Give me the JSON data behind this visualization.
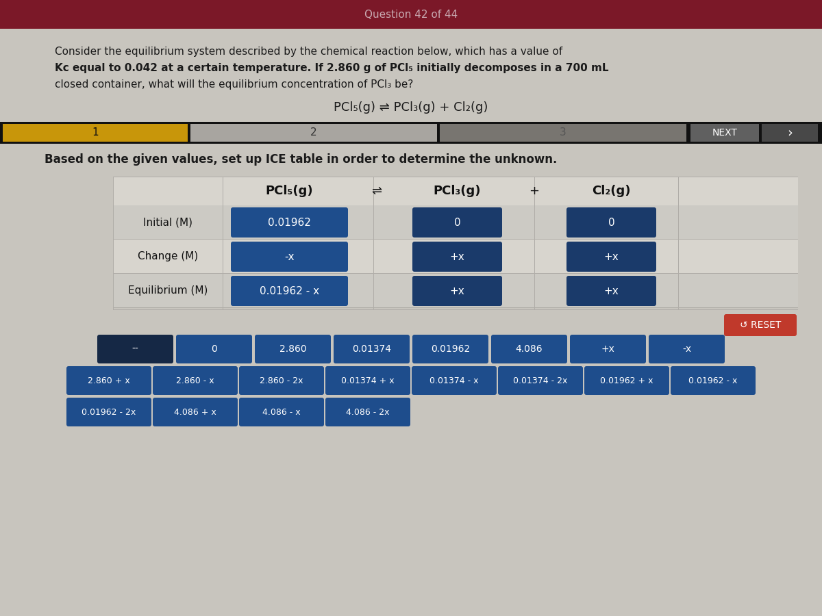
{
  "header_text": "Question 42 of 44",
  "header_bg": "#7B1828",
  "header_text_color": "#C8A8B0",
  "main_bg": "#C8C5BE",
  "question_line1": "Consider the equilibrium system described by the chemical reaction below, which has a value of",
  "question_line2_normal": "Kc equal to 0.042 at a certain temperature. If 2.860 g of PCl",
  "question_line2_bold": "5",
  "question_line2_end": " initially decomposes in a 700 mL",
  "question_line3": "closed container, what will the equilibrium concentration of PCl",
  "equation": "PCl₅(g) ⇌ PCl₃(g) + Cl₂(g)",
  "nav_bg": "#111111",
  "nav_step1_color": "#C8960A",
  "nav_step2_color": "#A8A5A0",
  "nav_step3_color": "#787570",
  "instruction": "Based on the given values, set up ICE table in order to determine the unknown.",
  "table_header_col1": "PCl₅(g)",
  "table_header_eq": "⇌",
  "table_header_col2": "PCl₃(g)",
  "table_header_plus": "+",
  "table_header_col3": "Cl₂(g)",
  "row_labels": [
    "Initial (M)",
    "Change (M)",
    "Equilibrium (M)"
  ],
  "cell_blue": "#1E4D8C",
  "cell_dark_blue": "#1A3A6A",
  "table_bg_light": "#CCCAC4",
  "table_bg_lighter": "#D8D5CE",
  "table_border": "#B0ADA8",
  "reset_btn_color": "#C0392B",
  "reset_text": "↺ RESET",
  "button_row1": [
    "--",
    "0",
    "2.860",
    "0.01374",
    "0.01962",
    "4.086",
    "+x",
    "-x"
  ],
  "button_row2": [
    "2.860 + x",
    "2.860 - x",
    "2.860 - 2x",
    "0.01374 + x",
    "0.01374 - x",
    "0.01374 - 2x",
    "0.01962 + x",
    "0.01962 - x"
  ],
  "button_row3": [
    "0.01962 - 2x",
    "4.086 + x",
    "4.086 - x",
    "4.086 - 2x"
  ],
  "btn_dark_color": "#152845",
  "btn_medium_color": "#1E4D8C"
}
